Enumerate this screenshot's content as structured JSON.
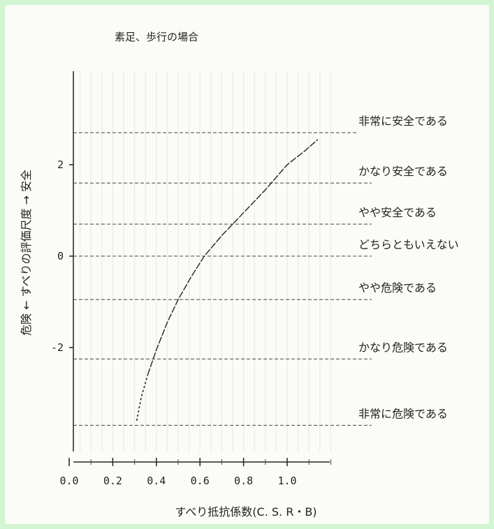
{
  "chart_data": {
    "type": "line",
    "title": "素足、歩行の場合",
    "xlabel": "すべり抵抗係数(C. S. R・B)",
    "ylabel": "危険 ← すべりの評価尺度 → 安全",
    "xlim": [
      0.0,
      1.2
    ],
    "ylim": [
      -4.0,
      3.5
    ],
    "x_ticks": [
      "0.0",
      "0.2",
      "0.4",
      "0.6",
      "0.8",
      "1.0"
    ],
    "y_ticks": [
      "2",
      "0",
      "-2"
    ],
    "categories": [
      {
        "label": "非常に安全である",
        "y": 2.7
      },
      {
        "label": "かなり安全である",
        "y": 1.6
      },
      {
        "label": "やや安全である",
        "y": 0.7
      },
      {
        "label": "どちらともいえない",
        "y": 0.0
      },
      {
        "label": "やや危険である",
        "y": -0.95
      },
      {
        "label": "かなり危険である",
        "y": -2.25
      },
      {
        "label": "非常に危険である",
        "y": -3.7
      }
    ],
    "series": [
      {
        "x": [
          0.31,
          0.33,
          0.36,
          0.4,
          0.45,
          0.5,
          0.56,
          0.62,
          0.7,
          0.8,
          0.9,
          1.0,
          1.08,
          1.14
        ],
        "y": [
          -3.6,
          -3.1,
          -2.6,
          -2.05,
          -1.45,
          -0.95,
          -0.45,
          0.0,
          0.45,
          0.95,
          1.45,
          2.0,
          2.3,
          2.55
        ]
      }
    ],
    "grid": true,
    "line_color": "#222222",
    "reference_line_color": "#444444"
  }
}
